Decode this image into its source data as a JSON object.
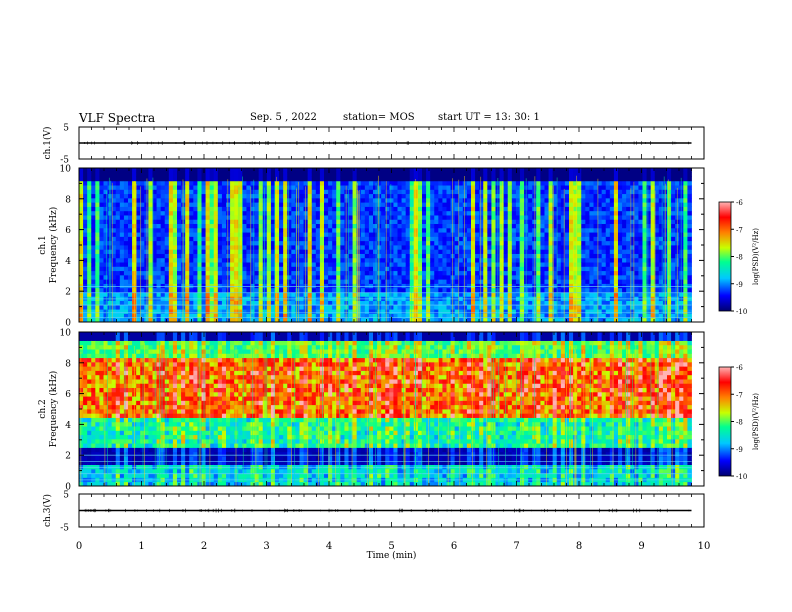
{
  "header": {
    "title": "VLF Spectra",
    "date": "Sep. 5 , 2022",
    "station": "station= MOS",
    "start": "start  UT =   13: 30: 1"
  },
  "chart_data": [
    {
      "type": "line",
      "name": "ch.1 waveform",
      "ylabel": "ch.1(V)",
      "ylim": [
        -5,
        5
      ],
      "yticks": [
        "5",
        "-5"
      ],
      "x": [
        0,
        9.8
      ],
      "y": [
        0,
        0
      ]
    },
    {
      "type": "heatmap",
      "name": "ch.1 spectrogram",
      "ylabel_line1": "ch.1",
      "ylabel_line2": "Frequency (kHz)",
      "ylim": [
        0,
        10
      ],
      "yticks": [
        "0",
        "2",
        "4",
        "6",
        "8",
        "10"
      ],
      "xlim": [
        0,
        10
      ],
      "data_xmax": 9.8,
      "colorbar": {
        "label": "log(PSD)(V²/Hz)",
        "range": [
          -10,
          -6
        ],
        "ticks": [
          "-6",
          "-7",
          "-8",
          "-9",
          "-10"
        ]
      },
      "noise_bands_khz": [
        0.3,
        0.6,
        1.1,
        1.5,
        1.9,
        2.3
      ]
    },
    {
      "type": "heatmap",
      "name": "ch.2 spectrogram",
      "ylabel_line1": "ch.2",
      "ylabel_line2": "Frequency (kHz)",
      "ylim": [
        0,
        10
      ],
      "yticks": [
        "0",
        "2",
        "4",
        "6",
        "8",
        "10"
      ],
      "xlim": [
        0,
        10
      ],
      "data_xmax": 9.8,
      "colorbar": {
        "label": "log(PSD)(V²/Hz)",
        "range": [
          -10,
          -6
        ],
        "ticks": [
          "-6",
          "-7",
          "-8",
          "-9",
          "-10"
        ]
      },
      "noise_bands_khz": [
        0.4,
        0.8,
        1.2,
        1.6,
        2.0
      ]
    },
    {
      "type": "line",
      "name": "ch.3 waveform",
      "ylabel": "ch.3(V)",
      "ylim": [
        -5,
        5
      ],
      "yticks": [
        "5",
        "-5"
      ],
      "x": [
        0,
        9.8
      ],
      "y": [
        0,
        0
      ]
    }
  ],
  "xaxis": {
    "label": "Time  (min)",
    "range": [
      0,
      10
    ],
    "ticks": [
      "0",
      "1",
      "2",
      "3",
      "4",
      "5",
      "6",
      "7",
      "8",
      "9",
      "10"
    ]
  },
  "colors": {
    "colormap": [
      "#000070",
      "#0000ff",
      "#00c8ff",
      "#00ff90",
      "#c8ff00",
      "#ff8000",
      "#ff0000",
      "#ffb4b4"
    ]
  }
}
